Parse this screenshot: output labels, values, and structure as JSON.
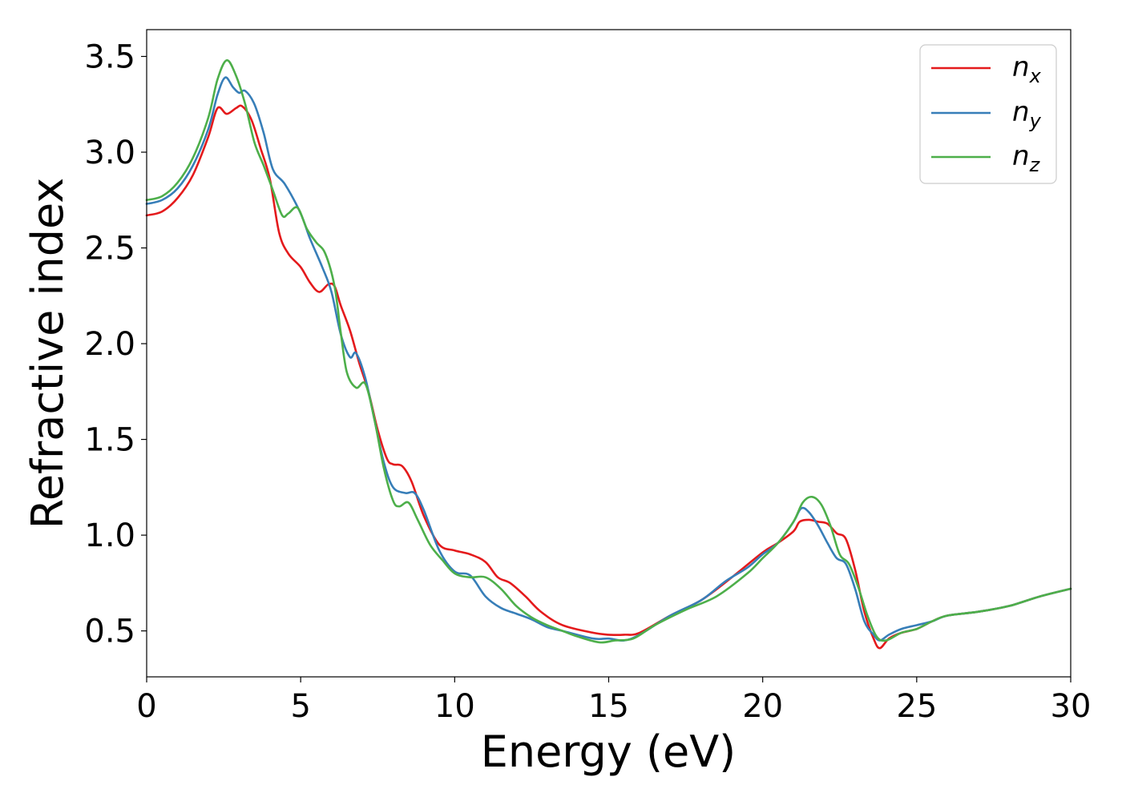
{
  "chart_data": {
    "type": "line",
    "xlabel": "Energy (eV)",
    "ylabel": "Refractive index",
    "xlim": [
      0,
      30
    ],
    "ylim": [
      0.26,
      3.64
    ],
    "xticks": [
      0,
      5,
      10,
      15,
      20,
      25,
      30
    ],
    "xtick_labels": [
      "0",
      "5",
      "10",
      "15",
      "20",
      "25",
      "30"
    ],
    "yticks": [
      0.5,
      1.0,
      1.5,
      2.0,
      2.5,
      3.0,
      3.5
    ],
    "ytick_labels": [
      "0.5",
      "1.0",
      "1.5",
      "2.0",
      "2.5",
      "3.0",
      "3.5"
    ],
    "grid": false,
    "legend_position": "top-right",
    "series": [
      {
        "name": "n_x",
        "label_base": "n",
        "label_sub": "x",
        "color": "#e41a1c",
        "x": [
          0,
          0.5,
          1,
          1.5,
          2,
          2.3,
          2.6,
          2.9,
          3.1,
          3.4,
          3.7,
          4.0,
          4.3,
          4.6,
          5.0,
          5.3,
          5.6,
          5.9,
          6.1,
          6.3,
          6.6,
          6.9,
          7.2,
          7.5,
          7.8,
          8.0,
          8.3,
          8.6,
          9.0,
          9.5,
          10.0,
          10.5,
          11.0,
          11.4,
          11.8,
          12.3,
          12.8,
          13.5,
          14.5,
          15.0,
          15.5,
          16.0,
          17.0,
          18.0,
          19.0,
          20.0,
          20.5,
          21.0,
          21.2,
          21.5,
          21.8,
          22.1,
          22.4,
          22.7,
          23.0,
          23.3,
          23.6,
          23.8,
          24.1,
          24.5,
          25.0,
          25.5,
          26.0,
          27.0,
          28.0,
          29.0,
          30.0
        ],
        "values": [
          2.67,
          2.69,
          2.76,
          2.88,
          3.08,
          3.23,
          3.2,
          3.23,
          3.24,
          3.17,
          3.02,
          2.86,
          2.58,
          2.47,
          2.4,
          2.32,
          2.27,
          2.31,
          2.3,
          2.2,
          2.07,
          1.9,
          1.75,
          1.55,
          1.4,
          1.37,
          1.36,
          1.28,
          1.1,
          0.95,
          0.92,
          0.9,
          0.86,
          0.78,
          0.75,
          0.68,
          0.6,
          0.53,
          0.49,
          0.48,
          0.48,
          0.49,
          0.58,
          0.66,
          0.78,
          0.91,
          0.96,
          1.02,
          1.07,
          1.08,
          1.07,
          1.06,
          1.01,
          0.98,
          0.82,
          0.6,
          0.46,
          0.41,
          0.46,
          0.49,
          0.51,
          0.55,
          0.58,
          0.6,
          0.63,
          0.68,
          0.72
        ]
      },
      {
        "name": "n_y",
        "label_base": "n",
        "label_sub": "y",
        "color": "#377eb8",
        "x": [
          0,
          0.5,
          1,
          1.5,
          2,
          2.3,
          2.55,
          2.8,
          3.0,
          3.2,
          3.5,
          3.8,
          4.1,
          4.5,
          5.0,
          5.3,
          5.7,
          6.0,
          6.3,
          6.6,
          6.8,
          7.1,
          7.4,
          7.7,
          8.0,
          8.4,
          8.7,
          9.0,
          9.5,
          10.0,
          10.5,
          11.0,
          11.5,
          12.0,
          12.5,
          13.0,
          13.5,
          14.5,
          15.0,
          15.5,
          16.0,
          17.0,
          18.0,
          18.8,
          19.5,
          20.0,
          20.5,
          21.0,
          21.25,
          21.5,
          21.8,
          22.1,
          22.4,
          22.7,
          23.0,
          23.3,
          23.6,
          23.8,
          24.1,
          24.5,
          25.0,
          25.5,
          26.0,
          27.0,
          28.0,
          29.0,
          30.0
        ],
        "values": [
          2.73,
          2.75,
          2.81,
          2.93,
          3.12,
          3.3,
          3.39,
          3.34,
          3.31,
          3.32,
          3.25,
          3.1,
          2.91,
          2.83,
          2.68,
          2.55,
          2.4,
          2.27,
          2.05,
          1.93,
          1.95,
          1.82,
          1.6,
          1.38,
          1.25,
          1.22,
          1.22,
          1.13,
          0.92,
          0.81,
          0.79,
          0.68,
          0.62,
          0.59,
          0.56,
          0.52,
          0.5,
          0.46,
          0.46,
          0.45,
          0.48,
          0.58,
          0.66,
          0.76,
          0.83,
          0.9,
          0.96,
          1.07,
          1.14,
          1.12,
          1.05,
          0.96,
          0.88,
          0.85,
          0.72,
          0.55,
          0.48,
          0.45,
          0.48,
          0.51,
          0.53,
          0.55,
          0.58,
          0.6,
          0.63,
          0.68,
          0.72
        ]
      },
      {
        "name": "n_z",
        "label_base": "n",
        "label_sub": "z",
        "color": "#4daf4a",
        "x": [
          0,
          0.5,
          1,
          1.5,
          2,
          2.3,
          2.6,
          2.9,
          3.2,
          3.5,
          3.8,
          4.1,
          4.4,
          4.6,
          4.9,
          5.2,
          5.5,
          5.8,
          6.1,
          6.3,
          6.5,
          6.8,
          7.1,
          7.4,
          7.7,
          8.0,
          8.2,
          8.5,
          8.8,
          9.2,
          9.6,
          10.0,
          10.5,
          11.0,
          11.5,
          12.0,
          12.5,
          13.0,
          13.5,
          14.0,
          14.7,
          15.2,
          15.8,
          16.5,
          17.5,
          18.5,
          19.5,
          20.0,
          20.5,
          21.0,
          21.3,
          21.6,
          21.9,
          22.2,
          22.5,
          22.8,
          23.1,
          23.4,
          23.7,
          24.0,
          24.5,
          25.0,
          25.5,
          26.0,
          27.0,
          28.0,
          29.0,
          30.0
        ],
        "values": [
          2.75,
          2.77,
          2.84,
          2.97,
          3.18,
          3.38,
          3.48,
          3.4,
          3.25,
          3.05,
          2.93,
          2.8,
          2.67,
          2.68,
          2.71,
          2.6,
          2.53,
          2.47,
          2.3,
          2.06,
          1.85,
          1.77,
          1.79,
          1.6,
          1.35,
          1.18,
          1.15,
          1.17,
          1.08,
          0.95,
          0.87,
          0.8,
          0.78,
          0.78,
          0.72,
          0.63,
          0.57,
          0.53,
          0.5,
          0.47,
          0.44,
          0.45,
          0.46,
          0.53,
          0.61,
          0.68,
          0.8,
          0.88,
          0.96,
          1.07,
          1.17,
          1.2,
          1.16,
          1.05,
          0.9,
          0.85,
          0.73,
          0.58,
          0.47,
          0.45,
          0.49,
          0.51,
          0.55,
          0.58,
          0.6,
          0.63,
          0.68,
          0.72
        ]
      }
    ]
  }
}
